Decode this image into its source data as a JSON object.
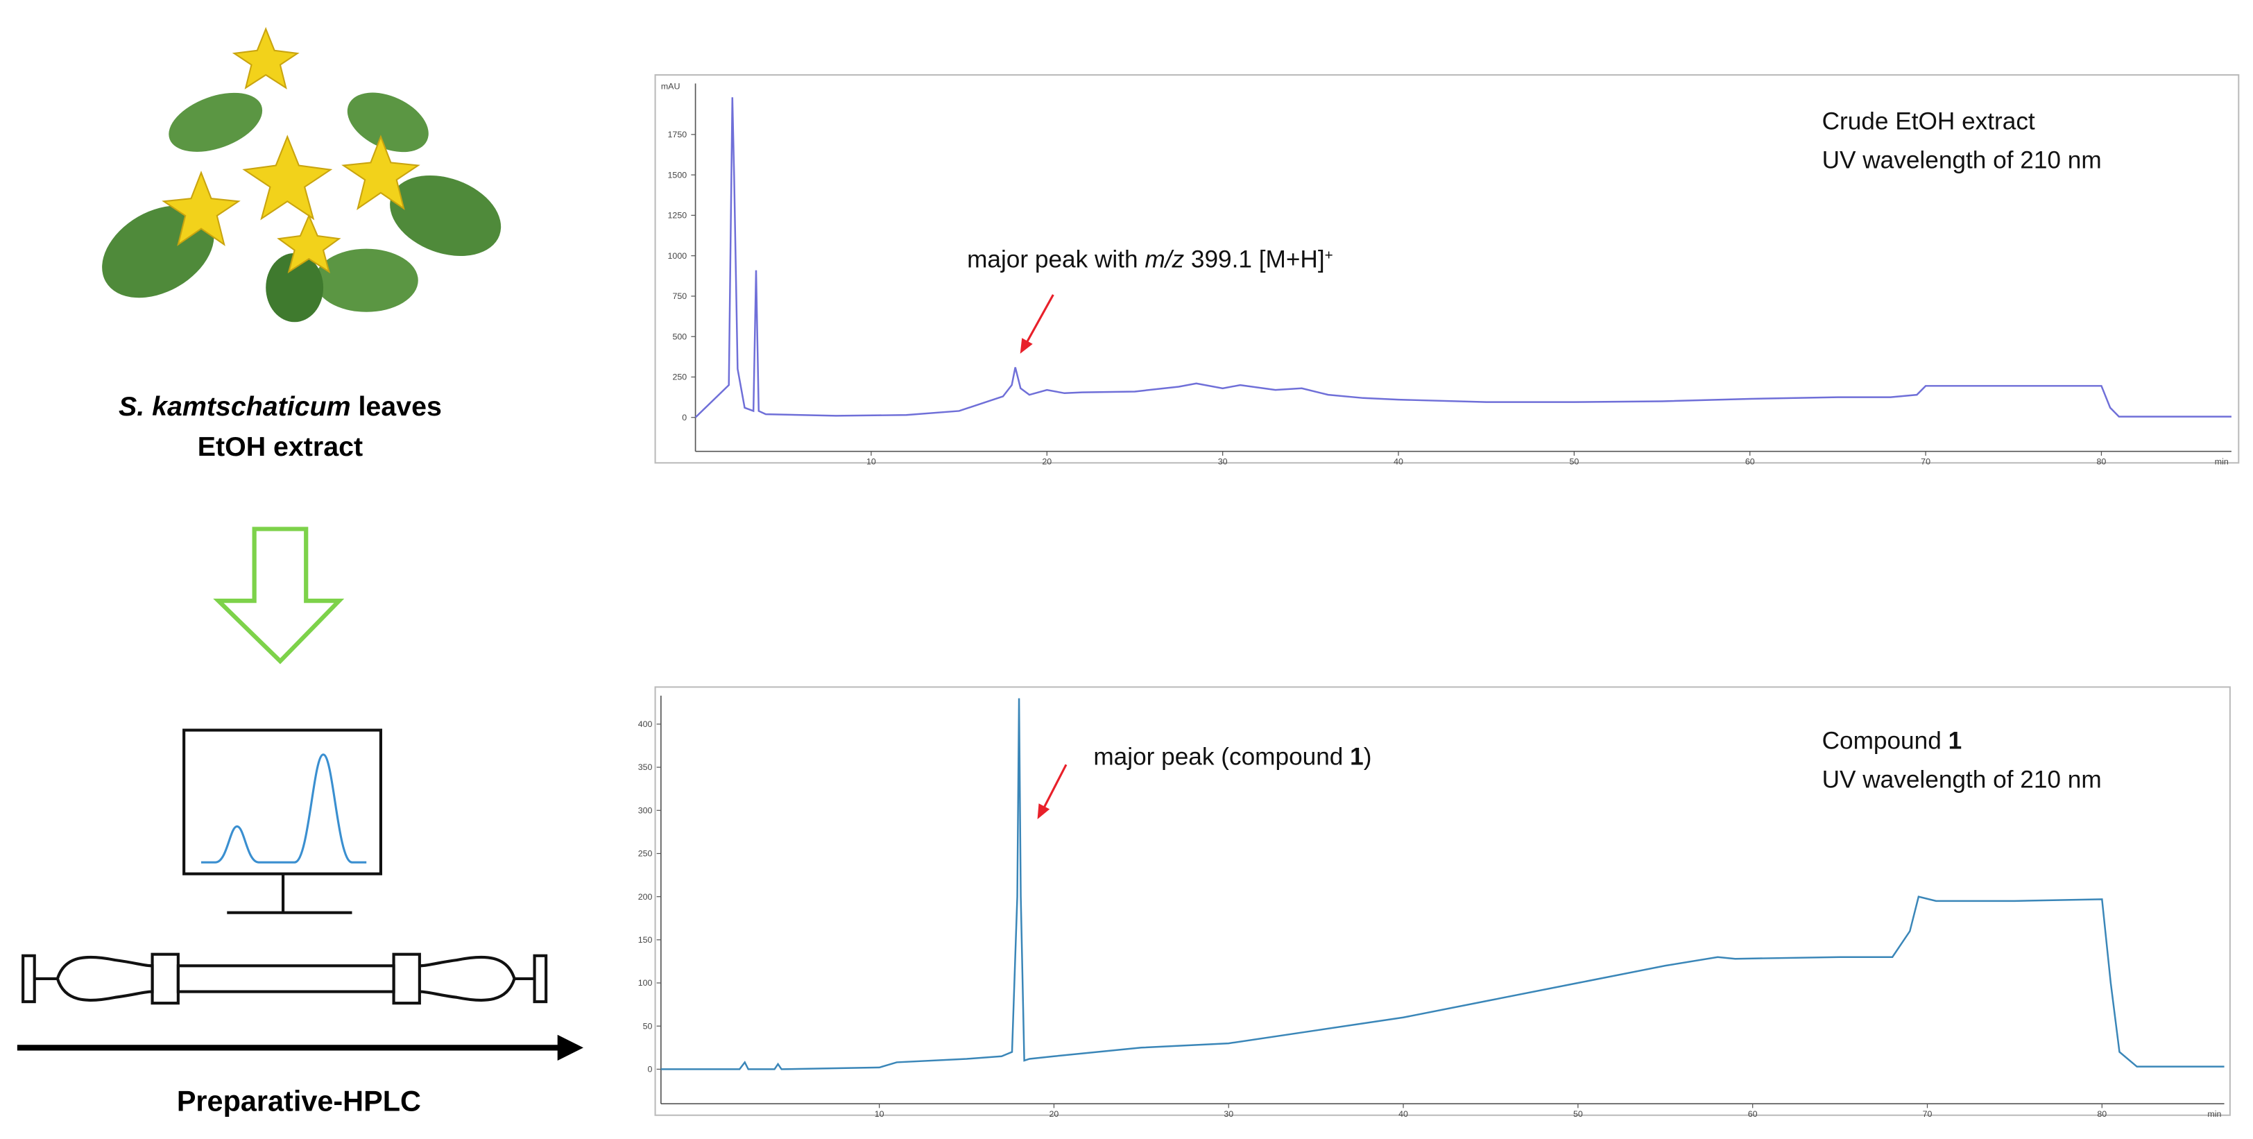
{
  "source": {
    "species": "S. kamtschaticum",
    "part": " leaves",
    "extract": "EtOH extract"
  },
  "method": "Preparative-HPLC",
  "chart_data": [
    {
      "type": "line",
      "title": [
        "Crude EtOH extract"
      ],
      "subtitle": "UV wavelength of 210 nm",
      "annotation": [
        "major peak with ",
        "m/z",
        " 399.1 [M+H]",
        "+"
      ],
      "ylabel": "mAU",
      "xlabel": "min",
      "color": "#6f6fd8",
      "x": [
        0,
        1.9,
        2.1,
        2.2,
        2.4,
        2.8,
        3.3,
        3.45,
        3.6,
        4,
        8,
        12,
        15,
        17.5,
        18.0,
        18.2,
        18.5,
        19,
        20,
        21,
        22,
        25,
        27.5,
        28.5,
        30,
        31,
        33,
        34.5,
        36,
        38,
        40,
        45,
        50,
        55,
        60,
        65,
        68,
        69.5,
        70,
        75,
        80,
        80.5,
        81,
        87.4
      ],
      "values": [
        0,
        200,
        1980,
        1500,
        300,
        60,
        40,
        910,
        40,
        20,
        10,
        15,
        40,
        130,
        200,
        310,
        180,
        140,
        170,
        150,
        155,
        160,
        190,
        210,
        180,
        200,
        170,
        180,
        140,
        120,
        110,
        95,
        95,
        100,
        115,
        125,
        125,
        140,
        195,
        195,
        195,
        60,
        5,
        5
      ],
      "xlim": [
        0,
        87.4
      ],
      "ylim": [
        -210,
        2065
      ],
      "xticks": [
        10,
        20,
        30,
        40,
        50,
        60,
        70,
        80
      ],
      "yticks": [
        0,
        250,
        500,
        750,
        1000,
        1250,
        1500,
        1750
      ]
    },
    {
      "type": "line",
      "title": [
        "Compound ",
        "1"
      ],
      "subtitle": "UV wavelength of 210 nm",
      "annotation": [
        "major peak (compound ",
        "1",
        ")"
      ],
      "xlabel": "min",
      "color": "#3a86b8",
      "x": [
        -2.5,
        2,
        2.3,
        2.5,
        4,
        4.2,
        4.4,
        10,
        11,
        15,
        17,
        17.6,
        17.9,
        18.0,
        18.1,
        18.3,
        18.6,
        20,
        25,
        30,
        35,
        40,
        45,
        50,
        55,
        58,
        59,
        65,
        68,
        69,
        69.5,
        70.5,
        75,
        80,
        80.5,
        81,
        82,
        87
      ],
      "values": [
        0,
        0,
        8,
        0,
        0,
        6,
        0,
        2,
        8,
        12,
        15,
        20,
        200,
        430,
        200,
        10,
        12,
        15,
        25,
        30,
        45,
        60,
        80,
        100,
        120,
        130,
        128,
        130,
        130,
        160,
        200,
        195,
        195,
        197,
        100,
        20,
        3,
        3
      ],
      "xlim": [
        -2.5,
        87
      ],
      "ylim": [
        -40,
        433
      ],
      "xticks": [
        10,
        20,
        30,
        40,
        50,
        60,
        70,
        80
      ],
      "yticks": [
        0,
        50,
        100,
        150,
        200,
        250,
        300,
        350,
        400
      ]
    }
  ]
}
